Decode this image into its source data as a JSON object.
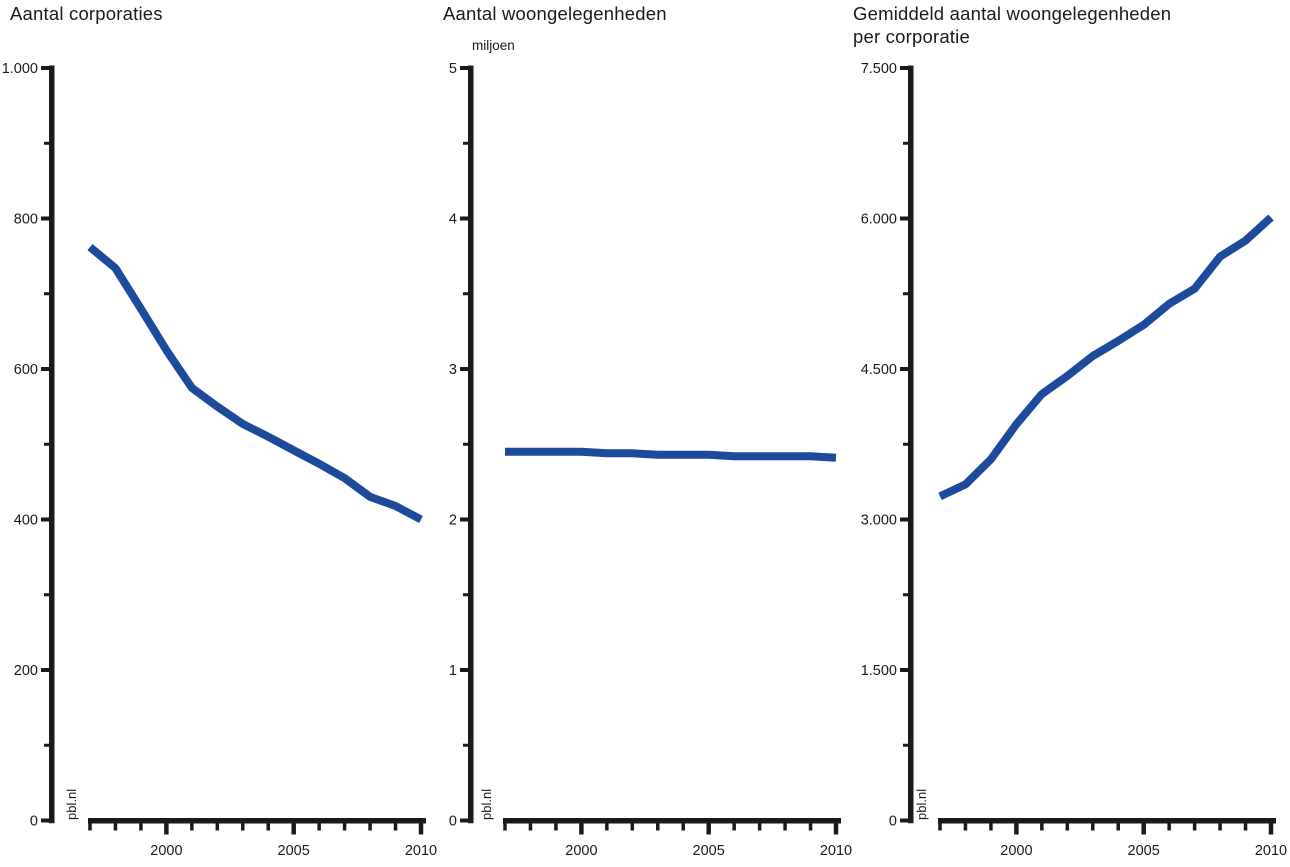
{
  "figure": {
    "source_label": "pbl.nl",
    "line_color": "#1e4a9c",
    "axis_color": "#1a1a1a",
    "background": "#ffffff"
  },
  "chart_data": [
    {
      "type": "line",
      "title": "Aantal corporaties",
      "unit": "",
      "xlabel": "",
      "ylabel": "",
      "xlim": [
        1997,
        2010
      ],
      "ylim": [
        0,
        1000
      ],
      "grid": false,
      "legend": false,
      "x": [
        1997,
        1998,
        1999,
        2000,
        2001,
        2002,
        2003,
        2004,
        2005,
        2006,
        2007,
        2008,
        2009,
        2010
      ],
      "values": [
        762,
        734,
        680,
        625,
        575,
        550,
        527,
        510,
        492,
        474,
        455,
        430,
        418,
        400
      ],
      "y_ticks": [
        {
          "value": 0,
          "label": "0"
        },
        {
          "value": 200,
          "label": "200"
        },
        {
          "value": 400,
          "label": "400"
        },
        {
          "value": 600,
          "label": "600"
        },
        {
          "value": 800,
          "label": "800"
        },
        {
          "value": 1000,
          "label": "1.000"
        }
      ],
      "x_ticks": [
        {
          "year": 2000,
          "label": "2000"
        },
        {
          "year": 2005,
          "label": "2005"
        },
        {
          "year": 2010,
          "label": "2010"
        }
      ]
    },
    {
      "type": "line",
      "title": "Aantal woongelegenheden",
      "unit": "miljoen",
      "xlabel": "",
      "ylabel": "",
      "xlim": [
        1997,
        2010
      ],
      "ylim": [
        0,
        5
      ],
      "grid": false,
      "legend": false,
      "x": [
        1997,
        1998,
        1999,
        2000,
        2001,
        2002,
        2003,
        2004,
        2005,
        2006,
        2007,
        2008,
        2009,
        2010
      ],
      "values": [
        2.45,
        2.45,
        2.45,
        2.45,
        2.44,
        2.44,
        2.43,
        2.43,
        2.43,
        2.42,
        2.42,
        2.42,
        2.42,
        2.41
      ],
      "y_ticks": [
        {
          "value": 0,
          "label": "0"
        },
        {
          "value": 1,
          "label": "1"
        },
        {
          "value": 2,
          "label": "2"
        },
        {
          "value": 3,
          "label": "3"
        },
        {
          "value": 4,
          "label": "4"
        },
        {
          "value": 5,
          "label": "5"
        }
      ],
      "x_ticks": [
        {
          "year": 2000,
          "label": "2000"
        },
        {
          "year": 2005,
          "label": "2005"
        },
        {
          "year": 2010,
          "label": "2010"
        }
      ]
    },
    {
      "type": "line",
      "title": "Gemiddeld aantal woongelegenheden per corporatie",
      "unit": "",
      "xlabel": "",
      "ylabel": "",
      "xlim": [
        1997,
        2010
      ],
      "ylim": [
        0,
        7500
      ],
      "grid": false,
      "legend": false,
      "x": [
        1997,
        1998,
        1999,
        2000,
        2001,
        2002,
        2003,
        2004,
        2005,
        2006,
        2007,
        2008,
        2009,
        2010
      ],
      "values": [
        3230,
        3350,
        3600,
        3950,
        4250,
        4430,
        4630,
        4780,
        4940,
        5150,
        5300,
        5620,
        5780,
        6010
      ],
      "y_ticks": [
        {
          "value": 0,
          "label": "0"
        },
        {
          "value": 1500,
          "label": "1.500"
        },
        {
          "value": 3000,
          "label": "3.000"
        },
        {
          "value": 4500,
          "label": "4.500"
        },
        {
          "value": 6000,
          "label": "6.000"
        },
        {
          "value": 7500,
          "label": "7.500"
        }
      ],
      "x_ticks": [
        {
          "year": 2000,
          "label": "2000"
        },
        {
          "year": 2005,
          "label": "2005"
        },
        {
          "year": 2010,
          "label": "2010"
        }
      ]
    }
  ]
}
